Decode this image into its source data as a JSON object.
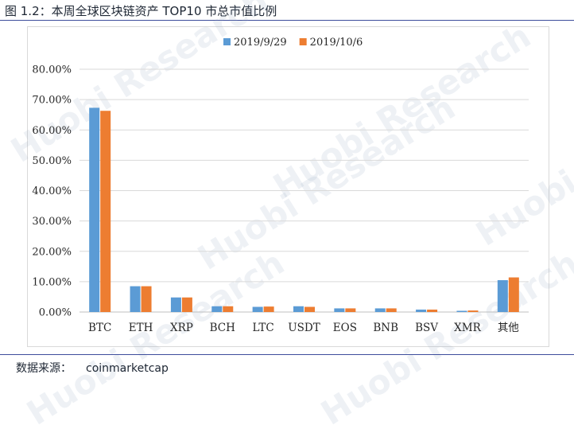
{
  "figure": {
    "title": "图 1.2：本周全球区块链资产 TOP10 市总市值比例",
    "source_label": "数据来源：",
    "source_value": "coinmarketcap",
    "watermark": "Huobi Research"
  },
  "chart_data": {
    "type": "bar",
    "title": "",
    "xlabel": "",
    "ylabel": "",
    "categories": [
      "BTC",
      "ETH",
      "XRP",
      "BCH",
      "LTC",
      "USDT",
      "EOS",
      "BNB",
      "BSV",
      "XMR",
      "其他"
    ],
    "series": [
      {
        "name": "2019/9/29",
        "color": "#5b9bd5",
        "values": [
          67.3,
          8.5,
          4.8,
          1.9,
          1.7,
          1.9,
          1.2,
          1.2,
          0.8,
          0.4,
          10.5
        ]
      },
      {
        "name": "2019/10/6",
        "color": "#ed7d31",
        "values": [
          66.3,
          8.5,
          4.8,
          1.9,
          1.8,
          1.7,
          1.2,
          1.2,
          0.8,
          0.5,
          11.4
        ]
      }
    ],
    "ylim": [
      0,
      80
    ],
    "yticks": [
      "0.00%",
      "10.00%",
      "20.00%",
      "30.00%",
      "40.00%",
      "50.00%",
      "60.00%",
      "70.00%",
      "80.00%"
    ],
    "grid": true,
    "legend": "top-center"
  }
}
